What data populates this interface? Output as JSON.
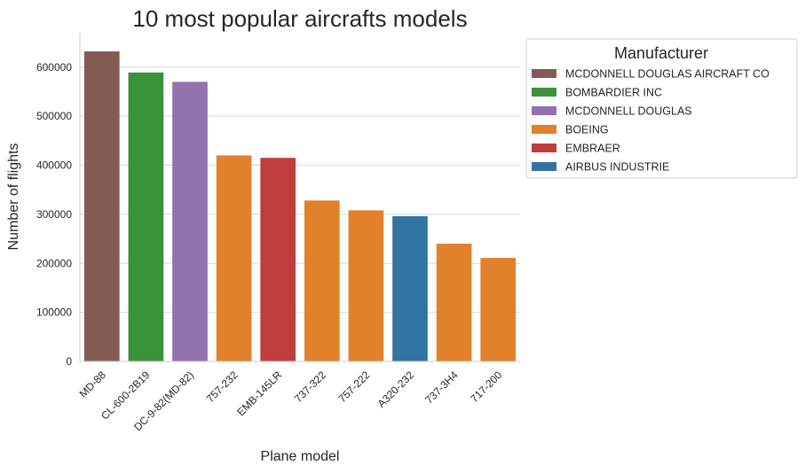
{
  "chart_data": {
    "type": "bar",
    "title": "10 most popular aircrafts models",
    "xlabel": "Plane model",
    "ylabel": "Number of flights",
    "ylim": [
      0,
      670000
    ],
    "yticks": [
      0,
      100000,
      200000,
      300000,
      400000,
      500000,
      600000
    ],
    "ytick_labels": [
      "0",
      "100000",
      "200000",
      "300000",
      "400000",
      "500000",
      "600000"
    ],
    "grid": "horizontal",
    "categories": [
      "MD-88",
      "CL-600-2B19",
      "DC-9-82(MD-82)",
      "757-232",
      "EMB-145LR",
      "737-322",
      "757-222",
      "A320-232",
      "737-3H4",
      "717-200"
    ],
    "values": [
      632000,
      589000,
      570000,
      420000,
      415000,
      328000,
      308000,
      296000,
      240000,
      211000
    ],
    "manufacturer": [
      "MCDONNELL DOUGLAS AIRCRAFT CO",
      "BOMBARDIER INC",
      "MCDONNELL DOUGLAS",
      "BOEING",
      "EMBRAER",
      "BOEING",
      "BOEING",
      "AIRBUS INDUSTRIE",
      "BOEING",
      "BOEING"
    ],
    "legend": {
      "title": "Manufacturer",
      "placement": "outside-top-right",
      "entries": [
        {
          "name": "MCDONNELL DOUGLAS AIRCRAFT CO",
          "color": "#845b53"
        },
        {
          "name": "BOMBARDIER INC",
          "color": "#3a923a"
        },
        {
          "name": "MCDONNELL DOUGLAS",
          "color": "#9372b2"
        },
        {
          "name": "BOEING",
          "color": "#e1812c"
        },
        {
          "name": "EMBRAER",
          "color": "#c03d3e"
        },
        {
          "name": "AIRBUS INDUSTRIE",
          "color": "#3274a1"
        }
      ]
    }
  }
}
